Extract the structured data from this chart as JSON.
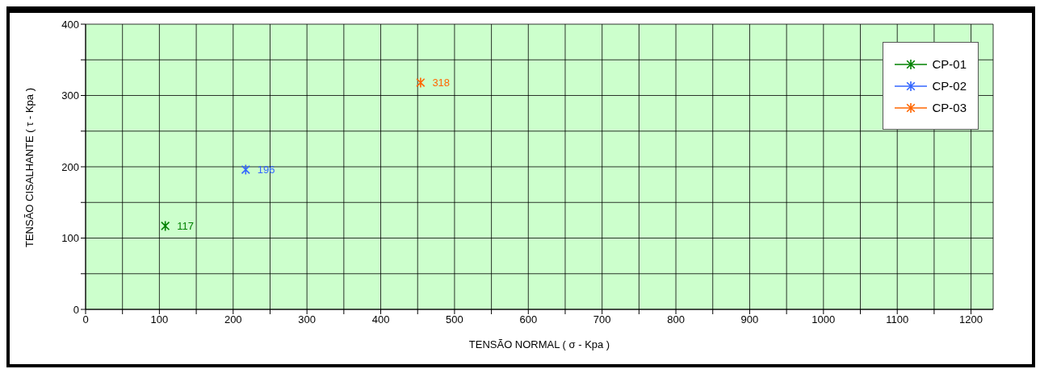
{
  "chart_data": {
    "type": "scatter",
    "xlabel": "TENSÃO NORMAL ( σ - Kpa )",
    "ylabel": "TENSÃO CISALHANTE ( τ - Kpa )",
    "series": [
      {
        "name": "CP-01",
        "color": "#008000",
        "x": [
          108
        ],
        "values": [
          117
        ]
      },
      {
        "name": "CP-02",
        "color": "#3366ff",
        "x": [
          217
        ],
        "values": [
          196
        ]
      },
      {
        "name": "CP-03",
        "color": "#ff6600",
        "x": [
          454
        ],
        "values": [
          318
        ]
      }
    ],
    "xlim": [
      0,
      1230
    ],
    "xticks": [
      0,
      {
        "value": 50,
        "label": null
      },
      100,
      {
        "value": 150,
        "label": null
      },
      200,
      {
        "value": 250,
        "label": null
      },
      300,
      {
        "value": 350,
        "label": null
      },
      400,
      {
        "value": 450,
        "label": null
      },
      500,
      {
        "value": 550,
        "label": null
      },
      600,
      {
        "value": 650,
        "label": null
      },
      700,
      {
        "value": 750,
        "label": null
      },
      800,
      {
        "value": 850,
        "label": null
      },
      900,
      {
        "value": 950,
        "label": null
      },
      1000,
      {
        "value": 1050,
        "label": null
      },
      1100,
      {
        "value": 1150,
        "label": null
      },
      1200
    ],
    "ylim": [
      0,
      400
    ],
    "yticks": [
      0,
      {
        "value": 50,
        "label": null
      },
      100,
      {
        "value": 150,
        "label": null
      },
      200,
      {
        "value": 250,
        "label": null
      },
      300,
      {
        "value": 350,
        "label": null
      },
      400
    ],
    "grid": true,
    "legend": "top right",
    "marker": "cross",
    "data_labels": true
  }
}
